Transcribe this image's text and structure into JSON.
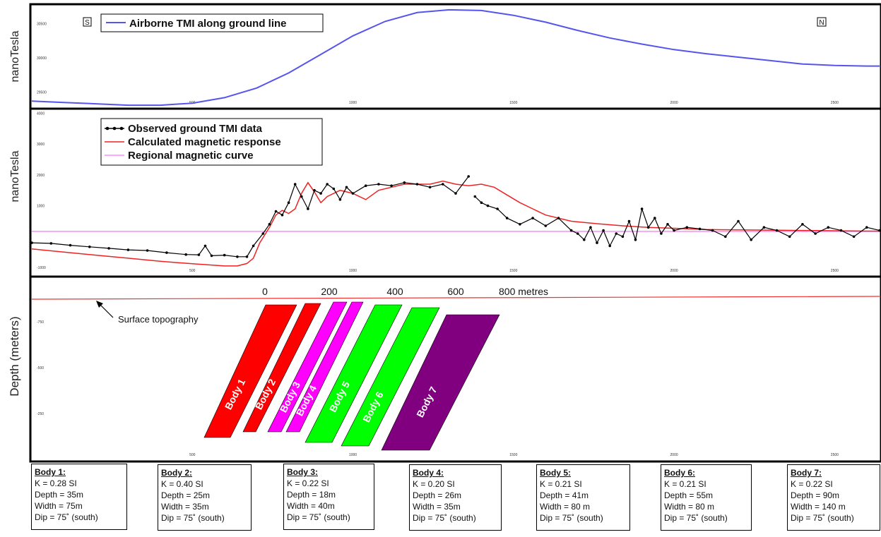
{
  "chart_data": [
    {
      "type": "line",
      "ylabel": "nanoTesla",
      "x_ticks": [
        "500",
        "1000",
        "1500",
        "2000",
        "2500"
      ],
      "y_ticks": [
        "29500",
        "30000",
        "30500"
      ],
      "legend": [
        "Airborne TMI along ground line"
      ],
      "direction_labels": {
        "left": "S",
        "right": "N"
      },
      "xlim": [
        0,
        2640
      ],
      "ylim": [
        29280,
        30740
      ],
      "series": [
        {
          "name": "Airborne TMI along ground line",
          "color": "#5555ee",
          "x": [
            0,
            100,
            200,
            300,
            400,
            500,
            600,
            700,
            800,
            900,
            1000,
            1100,
            1200,
            1300,
            1400,
            1500,
            1600,
            1700,
            1800,
            1900,
            2000,
            2100,
            2200,
            2300,
            2400,
            2500,
            2600,
            2640
          ],
          "y": [
            29370,
            29350,
            29330,
            29310,
            29310,
            29340,
            29420,
            29560,
            29780,
            30050,
            30320,
            30530,
            30660,
            30700,
            30690,
            30620,
            30520,
            30400,
            30290,
            30200,
            30120,
            30060,
            30010,
            29960,
            29910,
            29890,
            29880,
            29880
          ]
        }
      ]
    },
    {
      "type": "line",
      "ylabel": "nanoTesla",
      "x_ticks": [
        "500",
        "1000",
        "1500",
        "2000",
        "2500"
      ],
      "y_ticks": [
        "-1000",
        "1000",
        "2000",
        "3000",
        "4000"
      ],
      "legend": [
        "Observed ground TMI data",
        "Calculated magnetic response",
        "Regional magnetic curve"
      ],
      "xlim": [
        0,
        2640
      ],
      "ylim": [
        -1250,
        4100
      ],
      "series": [
        {
          "name": "Observed ground TMI data",
          "color": "#000000",
          "x": [
            0,
            60,
            120,
            180,
            240,
            300,
            360,
            420,
            480,
            520,
            540,
            560,
            600,
            640,
            670,
            690,
            720,
            740,
            760,
            780,
            800,
            820,
            840,
            860,
            880,
            900,
            920,
            940,
            960,
            980,
            1000,
            1040,
            1080,
            1120,
            1160,
            1200,
            1240,
            1280,
            1320,
            1360,
            1380,
            1400,
            1420,
            1450,
            1480,
            1520,
            1560,
            1600,
            1640,
            1680,
            1700,
            1720,
            1740,
            1760,
            1780,
            1800,
            1820,
            1840,
            1860,
            1880,
            1900,
            1920,
            1940,
            1960,
            1980,
            2000,
            2040,
            2080,
            2120,
            2160,
            2200,
            2240,
            2280,
            2320,
            2360,
            2400,
            2440,
            2480,
            2520,
            2560,
            2600,
            2640
          ],
          "y": [
            -200,
            -220,
            -280,
            -330,
            -380,
            -430,
            -450,
            -520,
            -580,
            -590,
            -300,
            -620,
            -600,
            -650,
            -650,
            -300,
            100,
            400,
            820,
            700,
            1100,
            1700,
            1300,
            900,
            1500,
            1400,
            1700,
            1550,
            1200,
            1600,
            1400,
            1650,
            1700,
            1650,
            1750,
            1700,
            1600,
            1700,
            1400,
            1950,
            1300,
            1100,
            1000,
            900,
            600,
            400,
            600,
            350,
            600,
            200,
            100,
            -100,
            300,
            -200,
            200,
            -300,
            100,
            0,
            500,
            -100,
            900,
            300,
            600,
            100,
            400,
            200,
            300,
            250,
            200,
            0,
            500,
            -100,
            300,
            200,
            0,
            400,
            100,
            300,
            200,
            0,
            300,
            200
          ],
          "gap_after_index": [
            39
          ]
        },
        {
          "name": "Calculated magnetic response",
          "color": "#ee2222",
          "x": [
            0,
            100,
            200,
            300,
            400,
            500,
            600,
            640,
            670,
            690,
            710,
            740,
            760,
            780,
            800,
            820,
            840,
            860,
            880,
            900,
            920,
            960,
            1000,
            1040,
            1080,
            1120,
            1160,
            1200,
            1240,
            1280,
            1320,
            1360,
            1400,
            1440,
            1480,
            1520,
            1560,
            1600,
            1680,
            1760,
            1840,
            1920,
            2000,
            2100,
            2200,
            2300,
            2400,
            2500,
            2600,
            2640
          ],
          "y": [
            -400,
            -500,
            -600,
            -700,
            -800,
            -880,
            -950,
            -950,
            -870,
            -700,
            -200,
            300,
            700,
            850,
            750,
            900,
            1400,
            1750,
            1450,
            1100,
            1300,
            1500,
            1400,
            1200,
            1500,
            1600,
            1700,
            1700,
            1700,
            1800,
            1700,
            1650,
            1700,
            1600,
            1350,
            1100,
            900,
            700,
            500,
            420,
            350,
            300,
            270,
            230,
            220,
            210,
            200,
            190,
            180,
            180
          ]
        },
        {
          "name": "Regional magnetic curve",
          "color": "#ff88ff",
          "x": [
            0,
            2640
          ],
          "y": [
            170,
            170
          ]
        }
      ]
    },
    {
      "type": "diagram",
      "ylabel": "Depth (meters)",
      "x_ticks": [
        "500",
        "1000",
        "1500",
        "2000",
        "2500"
      ],
      "y_ticks": [
        "-750",
        "-500",
        "-250"
      ],
      "scale_labels": [
        "0",
        "200",
        "400",
        "600",
        "800 metres"
      ],
      "annotation": "Surface topography",
      "bodies": [
        {
          "label": "Body 1",
          "color": "#ff0000"
        },
        {
          "label": "Body 2",
          "color": "#ff0000"
        },
        {
          "label": "Body 3",
          "color": "#ff00ff"
        },
        {
          "label": "Body 4",
          "color": "#ff00ff"
        },
        {
          "label": "Body 5",
          "color": "#00ff00"
        },
        {
          "label": "Body 6",
          "color": "#00ff00"
        },
        {
          "label": "Body 7",
          "color": "#800080"
        }
      ]
    }
  ],
  "body_params": [
    {
      "title": "Body 1:",
      "k": "K = 0.28 SI",
      "depth": "Depth = 35m",
      "width": "Width = 75m",
      "dip": "Dip = 75˚   (south)"
    },
    {
      "title": "Body 2:",
      "k": "K = 0.40 SI",
      "depth": "Depth = 25m",
      "width": "Width = 35m",
      "dip": "Dip = 75˚   (south)"
    },
    {
      "title": "Body 3:",
      "k": "K = 0.22 SI",
      "depth": "Depth = 18m",
      "width": "Width = 40m",
      "dip": "Dip = 75˚   (south)"
    },
    {
      "title": "Body 4:",
      "k": "K = 0.20 SI",
      "depth": "Depth = 26m",
      "width": "Width = 35m",
      "dip": "Dip = 75˚   (south)"
    },
    {
      "title": "Body 5:",
      "k": "K = 0.21 SI",
      "depth": "Depth = 41m",
      "width": "Width = 80 m",
      "dip": "Dip = 75˚   (south)"
    },
    {
      "title": "Body 6:",
      "k": "K = 0.21 SI",
      "depth": "Depth = 55m",
      "width": "Width = 80 m",
      "dip": "Dip = 75˚   (south)"
    },
    {
      "title": "Body 7:",
      "k": "K = 0.22 SI",
      "depth": "Depth = 90m",
      "width": "Width = 140 m",
      "dip": "Dip = 75˚   (south)"
    }
  ]
}
